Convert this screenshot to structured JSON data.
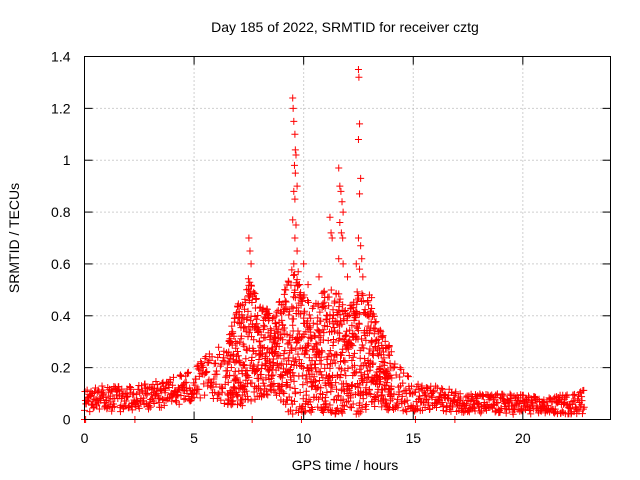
{
  "chart_data": {
    "type": "scatter",
    "title": "Day 185 of 2022, SRMTID for receiver cztg",
    "xlabel": "GPS time / hours",
    "ylabel": "SRMTID / TECUs",
    "xlim": [
      0,
      24
    ],
    "ylim": [
      0,
      1.4
    ],
    "xticks": [
      0,
      5,
      10,
      15,
      20
    ],
    "yticks": [
      0,
      0.2,
      0.4,
      0.6,
      0.8,
      1,
      1.2,
      1.4
    ],
    "xtick_labels": [
      "0",
      "5",
      "10",
      "15",
      "20"
    ],
    "ytick_labels": [
      "0",
      "0.2",
      "0.4",
      "0.6",
      "0.8",
      "1",
      "1.2",
      "1.4"
    ],
    "marker": "+",
    "color": "#ff0000",
    "grid": true,
    "series": [
      {
        "name": "SRMTID",
        "envelope": {
          "x": [
            0,
            0.5,
            1,
            2,
            3,
            4,
            5,
            5.5,
            6,
            6.5,
            7,
            7.5,
            8,
            8.5,
            9,
            9.5,
            10,
            10.5,
            11,
            11.5,
            12,
            12.5,
            13,
            13.5,
            14,
            14.5,
            15,
            15.5,
            16,
            17,
            18,
            19,
            20,
            21,
            22,
            22.8
          ],
          "base": [
            0.07,
            0.08,
            0.08,
            0.08,
            0.09,
            0.11,
            0.13,
            0.16,
            0.18,
            0.17,
            0.25,
            0.3,
            0.28,
            0.25,
            0.27,
            0.3,
            0.25,
            0.24,
            0.26,
            0.25,
            0.24,
            0.26,
            0.25,
            0.2,
            0.15,
            0.11,
            0.09,
            0.08,
            0.08,
            0.07,
            0.06,
            0.06,
            0.06,
            0.05,
            0.06,
            0.07
          ],
          "spread": [
            0.04,
            0.05,
            0.05,
            0.05,
            0.05,
            0.06,
            0.07,
            0.08,
            0.1,
            0.12,
            0.2,
            0.25,
            0.2,
            0.15,
            0.2,
            0.3,
            0.25,
            0.2,
            0.25,
            0.25,
            0.2,
            0.25,
            0.2,
            0.15,
            0.12,
            0.08,
            0.06,
            0.05,
            0.05,
            0.04,
            0.04,
            0.04,
            0.04,
            0.03,
            0.04,
            0.05
          ]
        },
        "peaks": [
          {
            "x": 7.5,
            "y": 0.7
          },
          {
            "x": 7.55,
            "y": 0.65
          },
          {
            "x": 7.6,
            "y": 0.6
          },
          {
            "x": 9.5,
            "y": 1.24
          },
          {
            "x": 9.52,
            "y": 1.2
          },
          {
            "x": 9.55,
            "y": 1.15
          },
          {
            "x": 9.6,
            "y": 1.1
          },
          {
            "x": 9.62,
            "y": 1.04
          },
          {
            "x": 9.65,
            "y": 1.02
          },
          {
            "x": 9.58,
            "y": 0.98
          },
          {
            "x": 9.62,
            "y": 0.95
          },
          {
            "x": 9.7,
            "y": 0.9
          },
          {
            "x": 9.55,
            "y": 0.88
          },
          {
            "x": 9.6,
            "y": 0.85
          },
          {
            "x": 9.5,
            "y": 0.77
          },
          {
            "x": 9.65,
            "y": 0.75
          },
          {
            "x": 9.6,
            "y": 0.7
          },
          {
            "x": 9.7,
            "y": 0.65
          },
          {
            "x": 9.55,
            "y": 0.6
          },
          {
            "x": 9.75,
            "y": 0.57
          },
          {
            "x": 9.8,
            "y": 0.52
          },
          {
            "x": 10.0,
            "y": 0.6
          },
          {
            "x": 10.2,
            "y": 0.52
          },
          {
            "x": 10.7,
            "y": 0.55
          },
          {
            "x": 11.2,
            "y": 0.78
          },
          {
            "x": 11.25,
            "y": 0.72
          },
          {
            "x": 11.3,
            "y": 0.7
          },
          {
            "x": 11.6,
            "y": 0.97
          },
          {
            "x": 11.65,
            "y": 0.9
          },
          {
            "x": 11.7,
            "y": 0.88
          },
          {
            "x": 11.75,
            "y": 0.84
          },
          {
            "x": 11.8,
            "y": 0.8
          },
          {
            "x": 11.65,
            "y": 0.76
          },
          {
            "x": 11.72,
            "y": 0.72
          },
          {
            "x": 11.78,
            "y": 0.7
          },
          {
            "x": 11.6,
            "y": 0.62
          },
          {
            "x": 11.8,
            "y": 0.6
          },
          {
            "x": 12.0,
            "y": 0.55
          },
          {
            "x": 12.5,
            "y": 1.35
          },
          {
            "x": 12.52,
            "y": 1.32
          },
          {
            "x": 12.55,
            "y": 1.14
          },
          {
            "x": 12.5,
            "y": 1.08
          },
          {
            "x": 12.6,
            "y": 0.93
          },
          {
            "x": 12.55,
            "y": 0.87
          },
          {
            "x": 12.5,
            "y": 0.7
          },
          {
            "x": 12.6,
            "y": 0.67
          },
          {
            "x": 12.65,
            "y": 0.62
          },
          {
            "x": 12.55,
            "y": 0.58
          },
          {
            "x": 12.7,
            "y": 0.55
          },
          {
            "x": 12.4,
            "y": 0.6
          },
          {
            "x": 13.0,
            "y": 0.48
          },
          {
            "x": 13.1,
            "y": 0.47
          }
        ],
        "zero_points": [
          0.0,
          0.05,
          2.3,
          7.65,
          9.9,
          15.1,
          16.9
        ]
      }
    ]
  }
}
